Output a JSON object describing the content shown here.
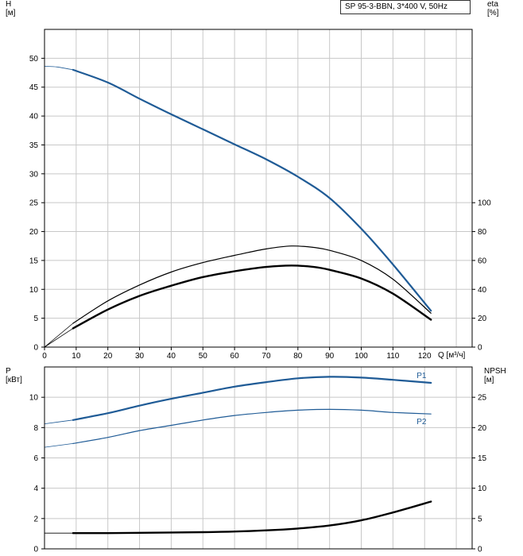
{
  "title_box": "SP 95-3-BBN, 3*400 V, 50Hz",
  "colors": {
    "blue": "#1f5b96",
    "black": "#000000",
    "grid": "#c8c8c8"
  },
  "chart_data": [
    {
      "type": "line",
      "name": "upper",
      "xlabel": "Q [м³/ч]",
      "ylabel_left": "H\n[м]",
      "ylabel_right": "eta\n[%]",
      "xlim": [
        0,
        135
      ],
      "ylim_left": [
        0,
        55
      ],
      "ylim_right": [
        0,
        220
      ],
      "x_ticks": [
        0,
        10,
        20,
        30,
        40,
        50,
        60,
        70,
        80,
        90,
        100,
        110,
        120
      ],
      "y_ticks_left": [
        0,
        5,
        10,
        15,
        20,
        25,
        30,
        35,
        40,
        45,
        50
      ],
      "y_ticks_right": [
        0,
        20,
        40,
        60,
        80,
        100
      ],
      "series": [
        {
          "axis": "left",
          "color": "#1f5b96",
          "width": 2.2,
          "x": [
            9,
            20,
            30,
            40,
            50,
            60,
            70,
            80,
            90,
            100,
            110,
            122
          ],
          "y": [
            48.0,
            45.8,
            43.0,
            40.3,
            37.7,
            35.1,
            32.5,
            29.5,
            25.8,
            20.5,
            14.3,
            6.3
          ]
        },
        {
          "axis": "left",
          "color": "#1f5b96",
          "width": 0.8,
          "x": [
            0,
            4,
            9
          ],
          "y": [
            48.6,
            48.5,
            48.0
          ]
        },
        {
          "axis": "right",
          "color": "#000000",
          "width": 1.2,
          "x": [
            9,
            20,
            30,
            40,
            50,
            60,
            70,
            78,
            85,
            90,
            100,
            110,
            122
          ],
          "y": [
            16.5,
            32,
            43,
            52,
            58.5,
            63.5,
            68,
            70,
            69,
            67,
            60,
            47,
            23.5
          ]
        },
        {
          "axis": "right",
          "color": "#000000",
          "width": 0.8,
          "x": [
            0,
            9
          ],
          "y": [
            0,
            16.5
          ]
        },
        {
          "axis": "right",
          "color": "#000000",
          "width": 2.4,
          "x": [
            9,
            20,
            30,
            40,
            50,
            60,
            70,
            78,
            85,
            90,
            100,
            110,
            122
          ],
          "y": [
            13,
            26,
            35.5,
            42.5,
            48.5,
            52.5,
            55.5,
            56.5,
            55.5,
            53.5,
            47.5,
            37,
            19
          ]
        },
        {
          "axis": "right",
          "color": "#000000",
          "width": 0.8,
          "x": [
            0,
            9
          ],
          "y": [
            0,
            13
          ]
        }
      ]
    },
    {
      "type": "line",
      "name": "lower",
      "ylabel_left": "P\n[кВт]",
      "ylabel_right": "NPSH\n[м]",
      "xlim": [
        0,
        135
      ],
      "ylim_left": [
        0,
        12
      ],
      "ylim_right": [
        0,
        30
      ],
      "y_ticks_left": [
        0,
        2,
        4,
        6,
        8,
        10
      ],
      "y_ticks_right": [
        0,
        5,
        10,
        15,
        20,
        25
      ],
      "series": [
        {
          "name": "P1",
          "axis": "left",
          "color": "#1f5b96",
          "width": 2.2,
          "x": [
            9,
            20,
            30,
            40,
            50,
            60,
            70,
            80,
            90,
            100,
            110,
            122
          ],
          "y": [
            8.5,
            8.95,
            9.45,
            9.9,
            10.3,
            10.7,
            11.0,
            11.25,
            11.35,
            11.3,
            11.15,
            10.95
          ]
        },
        {
          "axis": "left",
          "color": "#1f5b96",
          "width": 0.8,
          "x": [
            0,
            9
          ],
          "y": [
            8.25,
            8.5
          ]
        },
        {
          "name": "P2",
          "axis": "left",
          "color": "#1f5b96",
          "width": 1.2,
          "x": [
            9,
            20,
            30,
            40,
            50,
            60,
            70,
            80,
            90,
            100,
            110,
            122
          ],
          "y": [
            6.95,
            7.35,
            7.8,
            8.15,
            8.5,
            8.8,
            9.0,
            9.15,
            9.2,
            9.15,
            9.0,
            8.9
          ]
        },
        {
          "axis": "left",
          "color": "#1f5b96",
          "width": 0.8,
          "x": [
            0,
            9
          ],
          "y": [
            6.7,
            6.95
          ]
        },
        {
          "axis": "right",
          "color": "#000000",
          "width": 2.4,
          "x": [
            9,
            20,
            30,
            40,
            50,
            60,
            70,
            80,
            90,
            100,
            110,
            122
          ],
          "y": [
            2.6,
            2.6,
            2.65,
            2.7,
            2.75,
            2.85,
            3.05,
            3.35,
            3.85,
            4.7,
            6.0,
            7.8
          ]
        },
        {
          "axis": "right",
          "color": "#000000",
          "width": 0.8,
          "x": [
            0,
            9
          ],
          "y": [
            2.6,
            2.6
          ]
        }
      ]
    }
  ]
}
